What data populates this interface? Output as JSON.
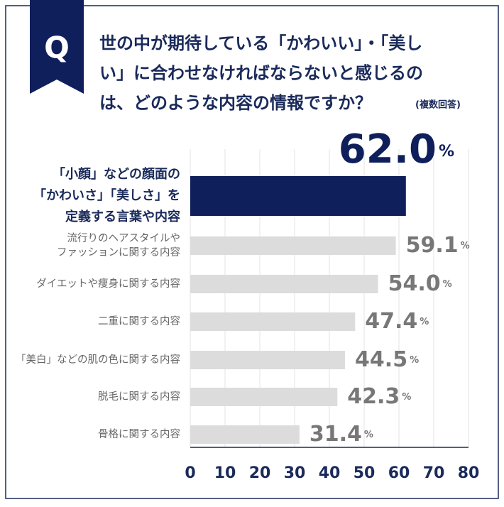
{
  "badge": "Q",
  "chart_data": {
    "type": "hbar",
    "title": [
      "世の中が期待している「かわいい」・「美し",
      "い」に合わせなければならないと感じるの",
      "は、どのような内容の情報ですか？"
    ],
    "subtitle": "(複数回答)",
    "categories": [
      [
        "「小顔」などの顔面の",
        "「かわいさ」「美しさ」を",
        "定義する言葉や内容"
      ],
      [
        "流行りのヘアスタイルや",
        "ファッションに関する内容"
      ],
      [
        "ダイエットや痩身に関する内容"
      ],
      [
        "二重に関する内容"
      ],
      [
        "「美白」などの肌の色に関する内容"
      ],
      [
        "脱毛に関する内容"
      ],
      [
        "骨格に関する内容"
      ]
    ],
    "values": [
      62.0,
      59.1,
      54.0,
      47.4,
      44.5,
      42.3,
      31.4
    ],
    "value_labels": [
      "62.0",
      "59.1",
      "54.0",
      "47.4",
      "44.5",
      "42.3",
      "31.4"
    ],
    "unit": "%",
    "colors": [
      "#0f1f5c",
      "#dcdcdc",
      "#dcdcdc",
      "#dcdcdc",
      "#dcdcdc",
      "#dcdcdc",
      "#dcdcdc"
    ],
    "highlight_index": 0,
    "xlim": [
      0,
      80
    ],
    "xticks": [
      0,
      10,
      20,
      30,
      40,
      50,
      60,
      70,
      80
    ],
    "grid": true
  }
}
